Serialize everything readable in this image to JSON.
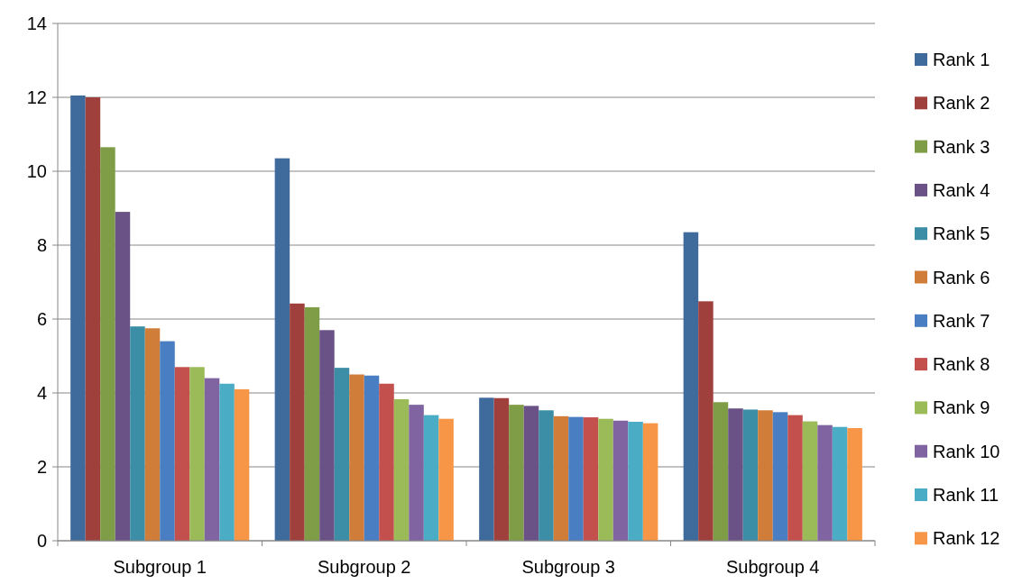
{
  "chart_data": {
    "type": "bar",
    "categories": [
      "Subgroup 1",
      "Subgroup 2",
      "Subgroup 3",
      "Subgroup 4"
    ],
    "series": [
      {
        "name": "Rank 1",
        "color": "#3f6a9c",
        "values": [
          12.05,
          10.35,
          3.87,
          8.35
        ]
      },
      {
        "name": "Rank 2",
        "color": "#a0403d",
        "values": [
          12.0,
          6.42,
          3.86,
          6.48
        ]
      },
      {
        "name": "Rank 3",
        "color": "#7f9c47",
        "values": [
          10.65,
          6.32,
          3.68,
          3.75
        ]
      },
      {
        "name": "Rank 4",
        "color": "#6a5287",
        "values": [
          8.9,
          5.7,
          3.65,
          3.58
        ]
      },
      {
        "name": "Rank 5",
        "color": "#3b8ea5",
        "values": [
          5.8,
          4.68,
          3.53,
          3.55
        ]
      },
      {
        "name": "Rank 6",
        "color": "#d07d39",
        "values": [
          5.75,
          4.5,
          3.37,
          3.53
        ]
      },
      {
        "name": "Rank 7",
        "color": "#4a7ec2",
        "values": [
          5.4,
          4.47,
          3.35,
          3.48
        ]
      },
      {
        "name": "Rank 8",
        "color": "#c4504e",
        "values": [
          4.7,
          4.25,
          3.34,
          3.4
        ]
      },
      {
        "name": "Rank 9",
        "color": "#9bbb59",
        "values": [
          4.7,
          3.83,
          3.3,
          3.23
        ]
      },
      {
        "name": "Rank 10",
        "color": "#8064a2",
        "values": [
          4.4,
          3.68,
          3.25,
          3.13
        ]
      },
      {
        "name": "Rank 11",
        "color": "#4bacc6",
        "values": [
          4.25,
          3.4,
          3.22,
          3.08
        ]
      },
      {
        "name": "Rank 12",
        "color": "#f79646",
        "values": [
          4.1,
          3.3,
          3.18,
          3.05
        ]
      }
    ],
    "ylim": [
      0,
      14
    ],
    "yticks": [
      0,
      2,
      4,
      6,
      8,
      10,
      12,
      14
    ],
    "grid": "y",
    "legend": "right"
  }
}
